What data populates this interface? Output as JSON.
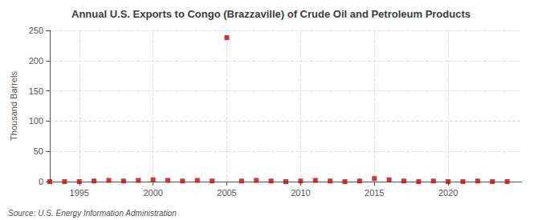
{
  "chart_data": {
    "type": "scatter",
    "title": "Annual U.S. Exports to Congo (Brazzaville) of Crude Oil and Petroleum Products",
    "ylabel": "Thousand Barrels",
    "annotations": [
      "Source: U.S. Energy Information Administration"
    ],
    "x": [
      1993,
      1994,
      1995,
      1996,
      1997,
      1998,
      1999,
      2000,
      2001,
      2002,
      2003,
      2004,
      2005,
      2006,
      2007,
      2008,
      2009,
      2010,
      2011,
      2012,
      2013,
      2014,
      2015,
      2016,
      2017,
      2018,
      2019,
      2020,
      2021,
      2022,
      2023,
      2024
    ],
    "values": [
      0,
      0,
      0,
      1,
      2,
      1,
      2,
      3,
      2,
      1,
      2,
      1,
      238,
      1,
      2,
      1,
      0,
      1,
      2,
      1,
      0,
      1,
      5,
      3,
      1,
      0,
      1,
      0,
      0,
      1,
      0,
      0
    ],
    "color": "#cc0000",
    "marker": "square",
    "xlim": [
      1993.0,
      2025.0
    ],
    "ylim": [
      0,
      250
    ],
    "xticks": [
      1995,
      2000,
      2005,
      2010,
      2015,
      2020
    ],
    "yticks": [
      0,
      50,
      100,
      150,
      200,
      250
    ],
    "grid": true
  }
}
